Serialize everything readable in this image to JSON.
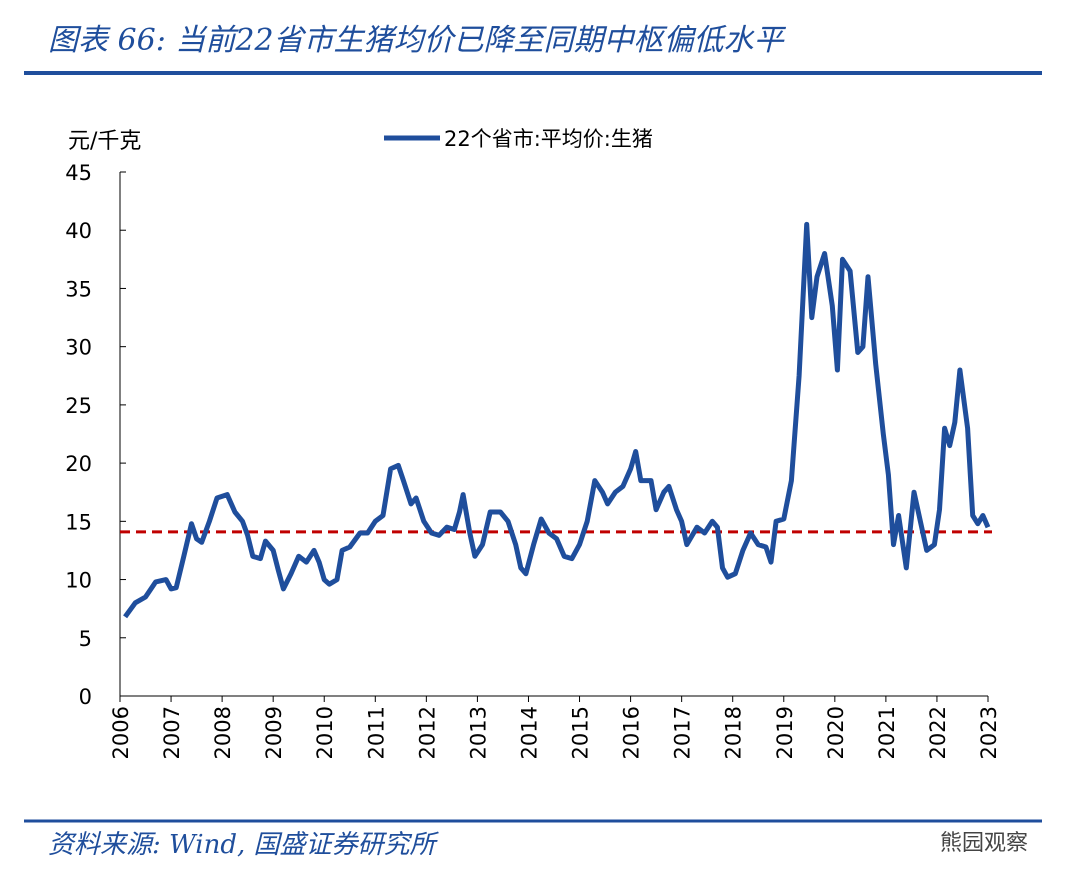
{
  "chart_data": {
    "type": "line",
    "title": "图表 66:  当前22省市生猪均价已降至同期中枢偏低水平",
    "y_label": "元/千克",
    "source": "资料来源:  Wind,  国盛证券研究所",
    "watermark": "熊园观察",
    "xlim": [
      2006,
      2023
    ],
    "xticks": [
      2006,
      2007,
      2008,
      2009,
      2010,
      2011,
      2012,
      2013,
      2014,
      2015,
      2016,
      2017,
      2018,
      2019,
      2020,
      2021,
      2022,
      2023
    ],
    "ylim": [
      0,
      45
    ],
    "yticks": [
      0,
      5,
      10,
      15,
      20,
      25,
      30,
      35,
      40,
      45
    ],
    "reference_line": {
      "value": 14.1,
      "color": "#c00000"
    },
    "legend": "top",
    "series": [
      {
        "name": "22个省市:平均价:生猪",
        "color": "#1f4e9c",
        "x": [
          2006.1,
          2006.3,
          2006.5,
          2006.7,
          2006.9,
          2007.0,
          2007.1,
          2007.25,
          2007.4,
          2007.5,
          2007.6,
          2007.75,
          2007.9,
          2008.1,
          2008.25,
          2008.4,
          2008.5,
          2008.6,
          2008.75,
          2008.85,
          2009.0,
          2009.1,
          2009.2,
          2009.35,
          2009.5,
          2009.65,
          2009.8,
          2009.9,
          2010.0,
          2010.1,
          2010.25,
          2010.35,
          2010.5,
          2010.7,
          2010.85,
          2011.0,
          2011.15,
          2011.3,
          2011.45,
          2011.55,
          2011.7,
          2011.8,
          2011.95,
          2012.1,
          2012.25,
          2012.4,
          2012.55,
          2012.65,
          2012.72,
          2012.85,
          2012.95,
          2013.1,
          2013.25,
          2013.45,
          2013.6,
          2013.75,
          2013.85,
          2013.95,
          2014.1,
          2014.25,
          2014.4,
          2014.55,
          2014.7,
          2014.85,
          2015.0,
          2015.15,
          2015.3,
          2015.45,
          2015.55,
          2015.7,
          2015.85,
          2016.0,
          2016.1,
          2016.2,
          2016.4,
          2016.5,
          2016.65,
          2016.75,
          2016.9,
          2017.0,
          2017.1,
          2017.3,
          2017.45,
          2017.6,
          2017.7,
          2017.8,
          2017.9,
          2018.05,
          2018.2,
          2018.35,
          2018.5,
          2018.65,
          2018.75,
          2018.85,
          2019.0,
          2019.15,
          2019.3,
          2019.45,
          2019.55,
          2019.65,
          2019.8,
          2019.95,
          2020.05,
          2020.15,
          2020.3,
          2020.45,
          2020.55,
          2020.65,
          2020.8,
          2020.95,
          2021.05,
          2021.15,
          2021.25,
          2021.4,
          2021.55,
          2021.65,
          2021.8,
          2021.95,
          2022.05,
          2022.15,
          2022.25,
          2022.35,
          2022.45,
          2022.6,
          2022.7,
          2022.8,
          2022.9,
          2023.0
        ],
        "values": [
          6.8,
          8.0,
          8.5,
          9.8,
          10.0,
          9.2,
          9.3,
          12.0,
          14.8,
          13.5,
          13.2,
          15.0,
          17.0,
          17.3,
          15.8,
          15.0,
          13.8,
          12.0,
          11.8,
          13.3,
          12.5,
          10.8,
          9.2,
          10.5,
          12.0,
          11.5,
          12.5,
          11.5,
          10.0,
          9.6,
          10.0,
          12.5,
          12.8,
          14.0,
          14.0,
          15.0,
          15.5,
          19.5,
          19.8,
          18.5,
          16.5,
          17.0,
          15.0,
          14.0,
          13.8,
          14.5,
          14.3,
          15.8,
          17.3,
          14.0,
          12.0,
          13.0,
          15.8,
          15.8,
          15.0,
          13.0,
          11.0,
          10.5,
          13.0,
          15.2,
          14.0,
          13.5,
          12.0,
          11.8,
          13.0,
          15.0,
          18.5,
          17.5,
          16.5,
          17.5,
          18.0,
          19.5,
          21.0,
          18.5,
          18.5,
          16.0,
          17.5,
          18.0,
          16.0,
          15.0,
          13.0,
          14.5,
          14.0,
          15.0,
          14.5,
          11.0,
          10.2,
          10.5,
          12.5,
          14.0,
          13.0,
          12.8,
          11.5,
          15.0,
          15.2,
          18.5,
          27.5,
          40.5,
          32.5,
          36.0,
          38.0,
          33.5,
          28.0,
          37.5,
          36.5,
          29.5,
          30.0,
          36.0,
          28.5,
          22.5,
          19.0,
          13.0,
          15.5,
          11.0,
          17.5,
          15.5,
          12.5,
          13.0,
          16.0,
          23.0,
          21.5,
          23.5,
          28.0,
          23.0,
          15.5,
          14.8,
          15.5,
          14.5
        ]
      }
    ]
  }
}
